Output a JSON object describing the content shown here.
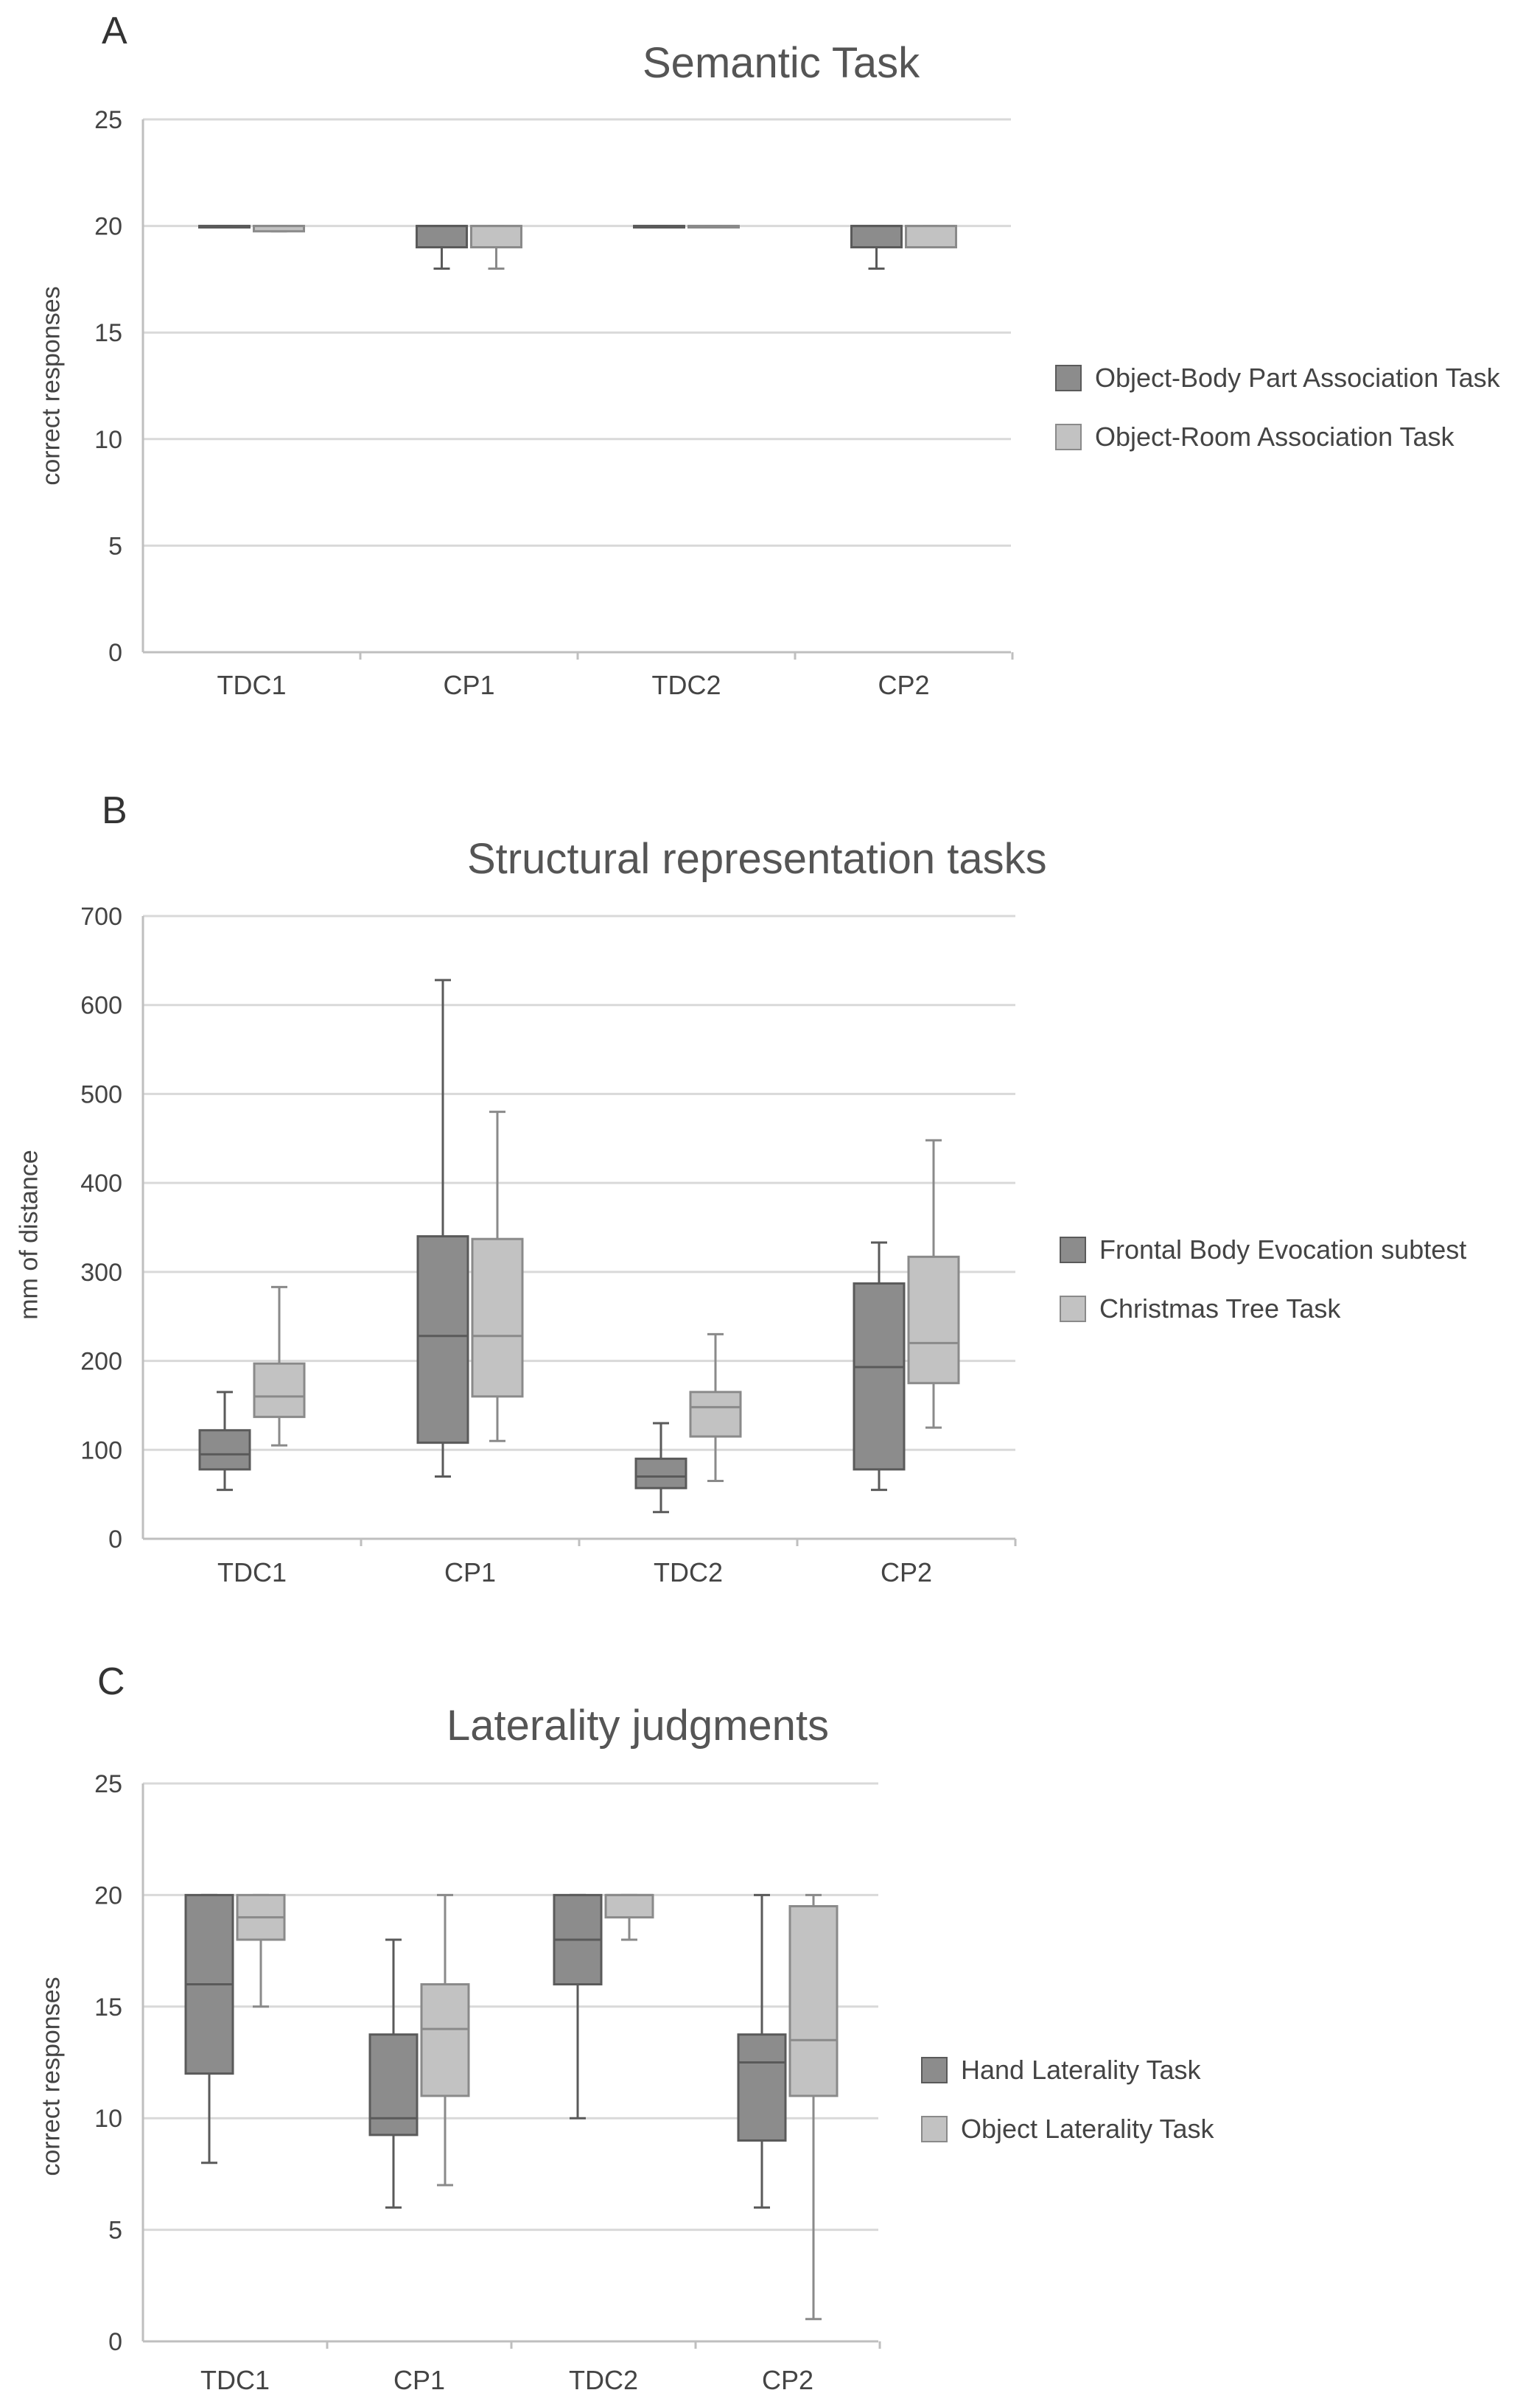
{
  "colors": {
    "series1_fill": "#8c8c8c",
    "series1_stroke": "#5a5a5a",
    "series2_fill": "#c2c2c2",
    "series2_stroke": "#8a8a8a",
    "grid": "#d9d9d9",
    "axis": "#bfbfbf"
  },
  "chart_data": [
    {
      "panel_letter": "A",
      "type": "box",
      "title": "Semantic Task",
      "ylabel": "correct responses",
      "xlabel": "",
      "ylim": [
        0,
        25
      ],
      "yticks": [
        "0",
        "5",
        "10",
        "15",
        "20",
        "25"
      ],
      "categories": [
        "TDC1",
        "CP1",
        "TDC2",
        "CP2"
      ],
      "legend_position": "right",
      "series": [
        {
          "name": "Object-Body Part Association Task",
          "boxes": [
            {
              "min": 20,
              "q1": 20,
              "median": 20,
              "q3": 20,
              "max": 20
            },
            {
              "min": 18,
              "q1": 19,
              "median": 20,
              "q3": 20,
              "max": 20
            },
            {
              "min": 20,
              "q1": 20,
              "median": 20,
              "q3": 20,
              "max": 20
            },
            {
              "min": 18,
              "q1": 19,
              "median": 20,
              "q3": 20,
              "max": 20
            }
          ]
        },
        {
          "name": "Object-Room Association Task",
          "boxes": [
            {
              "min": 19.75,
              "q1": 19.75,
              "median": 20,
              "q3": 20,
              "max": 20
            },
            {
              "min": 18,
              "q1": 19,
              "median": 20,
              "q3": 20,
              "max": 20
            },
            {
              "min": 20,
              "q1": 20,
              "median": 20,
              "q3": 20,
              "max": 20
            },
            {
              "min": 19,
              "q1": 19,
              "median": 20,
              "q3": 20,
              "max": 20
            }
          ]
        }
      ]
    },
    {
      "panel_letter": "B",
      "type": "box",
      "title": "Structural representation tasks",
      "ylabel": "mm  of distance",
      "xlabel": "",
      "ylim": [
        0,
        700
      ],
      "yticks": [
        "0",
        "100",
        "200",
        "300",
        "400",
        "500",
        "600",
        "700"
      ],
      "categories": [
        "TDC1",
        "CP1",
        "TDC2",
        "CP2"
      ],
      "legend_position": "right",
      "series": [
        {
          "name": "Frontal Body Evocation subtest",
          "boxes": [
            {
              "min": 55,
              "q1": 78,
              "median": 95,
              "q3": 122,
              "max": 165
            },
            {
              "min": 70,
              "q1": 108,
              "median": 228,
              "q3": 340,
              "max": 628
            },
            {
              "min": 30,
              "q1": 57,
              "median": 70,
              "q3": 90,
              "max": 130
            },
            {
              "min": 55,
              "q1": 78,
              "median": 193,
              "q3": 287,
              "max": 333
            }
          ]
        },
        {
          "name": "Christmas Tree Task",
          "boxes": [
            {
              "min": 105,
              "q1": 137,
              "median": 160,
              "q3": 197,
              "max": 283
            },
            {
              "min": 110,
              "q1": 160,
              "median": 228,
              "q3": 337,
              "max": 480
            },
            {
              "min": 65,
              "q1": 115,
              "median": 148,
              "q3": 165,
              "max": 230
            },
            {
              "min": 125,
              "q1": 175,
              "median": 220,
              "q3": 317,
              "max": 448
            }
          ]
        }
      ]
    },
    {
      "panel_letter": "C",
      "type": "box",
      "title": "Laterality judgments",
      "ylabel": "correct responses",
      "xlabel": "",
      "ylim": [
        0,
        25
      ],
      "yticks": [
        "0",
        "5",
        "10",
        "15",
        "20",
        "25"
      ],
      "categories": [
        "TDC1",
        "CP1",
        "TDC2",
        "CP2"
      ],
      "legend_position": "right",
      "series": [
        {
          "name": "Hand Laterality Task",
          "boxes": [
            {
              "min": 8,
              "q1": 12,
              "median": 16,
              "q3": 20,
              "max": 20
            },
            {
              "min": 6,
              "q1": 9.25,
              "median": 10,
              "q3": 13.75,
              "max": 18
            },
            {
              "min": 10,
              "q1": 16,
              "median": 18,
              "q3": 20,
              "max": 20
            },
            {
              "min": 6,
              "q1": 9,
              "median": 12.5,
              "q3": 13.75,
              "max": 20
            }
          ]
        },
        {
          "name": "Object Laterality Task",
          "boxes": [
            {
              "min": 15,
              "q1": 18,
              "median": 19,
              "q3": 20,
              "max": 20
            },
            {
              "min": 7,
              "q1": 11,
              "median": 14,
              "q3": 16,
              "max": 20
            },
            {
              "min": 18,
              "q1": 19,
              "median": 20,
              "q3": 20,
              "max": 20
            },
            {
              "min": 1,
              "q1": 11,
              "median": 13.5,
              "q3": 19.5,
              "max": 20
            }
          ]
        }
      ]
    }
  ]
}
